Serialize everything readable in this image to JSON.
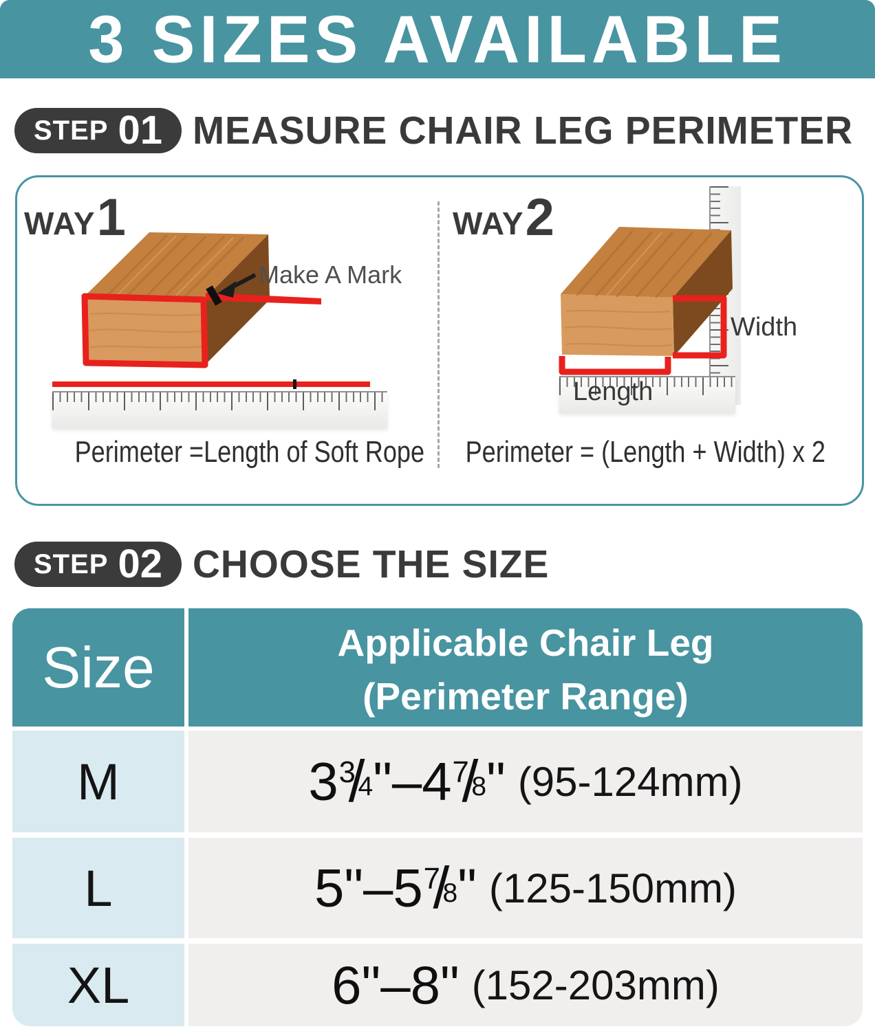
{
  "banner": {
    "title": "3 SIZES AVAILABLE"
  },
  "step1": {
    "badge": "STEP",
    "number": "01",
    "title": "MEASURE CHAIR LEG PERIMETER"
  },
  "way1": {
    "label": "WAY",
    "number": "1",
    "annotation": "Make A Mark",
    "caption": "Perimeter =Length of Soft Rope"
  },
  "way2": {
    "label": "WAY",
    "number": "2",
    "width_label": "Width",
    "length_label": "Length",
    "caption": "Perimeter = (Length + Width) x 2"
  },
  "step2": {
    "badge": "STEP",
    "number": "02",
    "title": "CHOOSE THE SIZE"
  },
  "table": {
    "size_header": "Size",
    "range_header_line1": "Applicable Chair Leg",
    "range_header_line2": "(Perimeter Range)",
    "rows": [
      {
        "size": "M",
        "inches": "3¾\"–4⅞\"",
        "mm": "(95-124mm)"
      },
      {
        "size": "L",
        "inches": "5\"–5⅞\"",
        "mm": "(125-150mm)"
      },
      {
        "size": "XL",
        "inches": "6\"–8\"",
        "mm": "(152-203mm)"
      }
    ]
  },
  "colors": {
    "teal": "#4894a1",
    "badge": "#3b3b3b",
    "red": "#e8211d",
    "heading_text": "#3a3a3a",
    "size_col_bg": "#d9eaf0",
    "value_col_bg": "#f0efee",
    "wood_top": "#c3803f",
    "wood_front": "#d89a5e",
    "wood_side": "#7c4a1e"
  }
}
